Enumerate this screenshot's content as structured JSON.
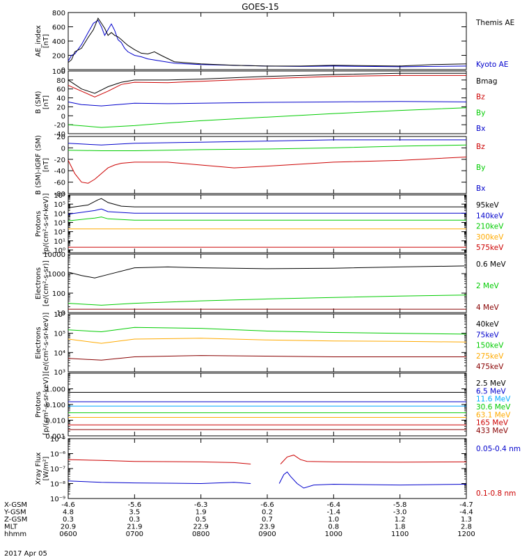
{
  "title": "GOES-15",
  "date_label": "2017 Apr 05",
  "footer": {
    "rows": [
      {
        "label": "X-GSM",
        "values": [
          "-4.6",
          "-5.6",
          "-6.3",
          "-6.6",
          "-6.4",
          "-5.8",
          "-4.7"
        ]
      },
      {
        "label": "Y-GSM",
        "values": [
          "4.8",
          "3.5",
          "1.9",
          "0.2",
          "-1.4",
          "-3.0",
          "-4.4"
        ]
      },
      {
        "label": "Z-GSM",
        "values": [
          "0.3",
          "0.3",
          "0.5",
          "0.7",
          "1.0",
          "1.2",
          "1.3"
        ]
      },
      {
        "label": "MLT",
        "values": [
          "20.9",
          "21.9",
          "22.9",
          "23.9",
          "0.8",
          "1.8",
          "2.8"
        ]
      },
      {
        "label": "hhmm",
        "values": [
          "0600",
          "0700",
          "0800",
          "0900",
          "1000",
          "1100",
          "1200"
        ]
      }
    ]
  },
  "colors": {
    "black": "#000000",
    "red": "#cc0000",
    "green": "#00cc00",
    "blue": "#0000cc",
    "orange": "#ffaa00",
    "ltblue": "#00aaff",
    "purple": "#8800aa",
    "brown": "#880000"
  },
  "chart_data": [
    {
      "type": "line",
      "ylabel": "AE_index\n[nT]",
      "scale": "linear",
      "ylim": [
        0,
        800
      ],
      "yticks": [
        0,
        200,
        400,
        600,
        800
      ],
      "ytick_labels": [
        "0",
        "200",
        "400",
        "600",
        "800"
      ],
      "series": [
        {
          "name": "Kyoto AE",
          "color": "blue",
          "x": [
            0,
            0.05,
            0.1,
            0.2,
            0.3,
            0.38,
            0.45,
            0.5,
            0.55,
            0.6,
            0.65,
            0.7,
            0.75,
            0.8,
            0.85,
            0.9,
            1,
            1.1,
            1.2,
            1.4,
            1.6,
            2,
            2.5,
            3,
            3.5,
            4,
            4.5,
            5,
            5.5,
            6
          ],
          "y": [
            120,
            200,
            220,
            350,
            520,
            650,
            690,
            600,
            480,
            560,
            640,
            550,
            420,
            380,
            300,
            250,
            200,
            180,
            150,
            120,
            90,
            70,
            60,
            50,
            45,
            50,
            45,
            40,
            45,
            50
          ]
        },
        {
          "name": "Themis AE",
          "color": "black",
          "x": [
            0,
            0.05,
            0.1,
            0.2,
            0.3,
            0.38,
            0.45,
            0.5,
            0.55,
            0.6,
            0.65,
            0.7,
            0.75,
            0.8,
            0.85,
            0.9,
            1,
            1.1,
            1.2,
            1.3,
            1.4,
            1.6,
            2,
            2.5,
            3,
            3.5,
            4,
            4.5,
            5,
            5.5,
            6
          ],
          "y": [
            100,
            140,
            250,
            300,
            450,
            560,
            720,
            650,
            580,
            480,
            520,
            480,
            460,
            420,
            380,
            340,
            280,
            230,
            220,
            250,
            200,
            110,
            80,
            60,
            50,
            50,
            60,
            55,
            50,
            70,
            80
          ]
        }
      ]
    },
    {
      "type": "line",
      "ylabel": "B (SM)\n[nT]",
      "scale": "linear",
      "ylim": [
        -40,
        100
      ],
      "yticks": [
        -40,
        -20,
        0,
        20,
        40,
        60,
        80,
        100
      ],
      "ytick_labels": [
        "-40",
        "-20",
        "0",
        "20",
        "40",
        "60",
        "80",
        "100"
      ],
      "series": [
        {
          "name": "Bx",
          "color": "blue",
          "x": [
            0,
            0.2,
            0.5,
            1,
            1.5,
            2,
            3,
            4,
            5,
            6
          ],
          "y": [
            31,
            25,
            22,
            28,
            27,
            28,
            30,
            31,
            32,
            31
          ]
        },
        {
          "name": "By",
          "color": "green",
          "x": [
            0,
            0.5,
            1,
            1.5,
            2,
            3,
            4,
            5,
            6
          ],
          "y": [
            -20,
            -26,
            -22,
            -16,
            -11,
            -3,
            5,
            12,
            18
          ]
        },
        {
          "name": "Bz",
          "color": "red",
          "x": [
            0,
            0.2,
            0.4,
            0.6,
            0.8,
            1,
            1.5,
            2,
            3,
            4,
            5,
            6
          ],
          "y": [
            68,
            55,
            42,
            55,
            70,
            75,
            74,
            77,
            83,
            88,
            90,
            90
          ]
        },
        {
          "name": "Bmag",
          "color": "black",
          "x": [
            0,
            0.2,
            0.4,
            0.6,
            0.8,
            1,
            1.5,
            2,
            3,
            4,
            5,
            6
          ],
          "y": [
            80,
            60,
            50,
            65,
            75,
            80,
            80,
            82,
            88,
            92,
            95,
            95
          ]
        }
      ]
    },
    {
      "type": "line",
      "ylabel": "B (SM)-IGRF (SM)\n[nT]",
      "scale": "linear",
      "ylim": [
        -80,
        20
      ],
      "yticks": [
        -80,
        -60,
        -40,
        -20,
        0,
        20
      ],
      "ytick_labels": [
        "-80",
        "-60",
        "-40",
        "-20",
        "0",
        "20"
      ],
      "series": [
        {
          "name": "Bx",
          "color": "blue",
          "x": [
            0,
            0.5,
            1,
            2,
            3,
            4,
            5,
            6
          ],
          "y": [
            8,
            5,
            8,
            10,
            12,
            14,
            14,
            14
          ]
        },
        {
          "name": "By",
          "color": "green",
          "x": [
            0,
            0.5,
            1,
            2,
            3,
            4,
            5,
            6
          ],
          "y": [
            -4,
            -5,
            -5,
            -3,
            -2,
            0,
            3,
            5
          ]
        },
        {
          "name": "Bz",
          "color": "red",
          "x": [
            0,
            0.1,
            0.2,
            0.3,
            0.4,
            0.5,
            0.6,
            0.7,
            0.8,
            1,
            1.5,
            2,
            2.5,
            3,
            4,
            5,
            6
          ],
          "y": [
            -22,
            -45,
            -60,
            -62,
            -55,
            -45,
            -35,
            -30,
            -27,
            -25,
            -25,
            -30,
            -35,
            -32,
            -25,
            -22,
            -16
          ]
        }
      ]
    },
    {
      "type": "line",
      "ylabel": "Protons\n[p/(cm²-s-sr-keV)]",
      "scale": "log",
      "ylim": [
        0.5,
        1000000
      ],
      "yticks": [
        1,
        10,
        100,
        1000,
        10000,
        100000,
        1000000
      ],
      "ytick_labels": [
        "10⁰",
        "10¹",
        "10²",
        "10³",
        "10⁴",
        "10⁵",
        "10⁶"
      ],
      "series": [
        {
          "name": "575keV",
          "color": "red",
          "x": [
            0,
            6
          ],
          "y": [
            2,
            2
          ]
        },
        {
          "name": "300keV",
          "color": "orange",
          "x": [
            0,
            6
          ],
          "y": [
            200,
            200
          ]
        },
        {
          "name": "210keV",
          "color": "green",
          "x": [
            0,
            0.4,
            0.5,
            0.6,
            1,
            6
          ],
          "y": [
            1500,
            3000,
            4000,
            2500,
            1800,
            1800
          ]
        },
        {
          "name": "140keV",
          "color": "blue",
          "x": [
            0,
            0.4,
            0.5,
            0.6,
            1,
            6
          ],
          "y": [
            8000,
            20000,
            30000,
            15000,
            10000,
            10000
          ]
        },
        {
          "name": "95keV",
          "color": "black",
          "x": [
            0,
            0.3,
            0.45,
            0.5,
            0.6,
            0.8,
            1,
            6
          ],
          "y": [
            40000,
            80000,
            300000,
            400000,
            150000,
            60000,
            50000,
            50000
          ]
        }
      ]
    },
    {
      "type": "line",
      "ylabel": "Electrons\n[e/(cm²-s-sr)]",
      "scale": "log",
      "ylim": [
        10,
        10000
      ],
      "yticks": [
        10,
        100,
        1000,
        10000
      ],
      "ytick_labels": [
        "10",
        "100",
        "1000",
        "10000"
      ],
      "series": [
        {
          "name": "4 MeV",
          "color": "brown",
          "x": [
            0,
            6
          ],
          "y": [
            15,
            15
          ]
        },
        {
          "name": "2 MeV",
          "color": "green",
          "x": [
            0,
            0.5,
            1,
            2,
            3,
            4,
            5,
            6
          ],
          "y": [
            30,
            24,
            30,
            40,
            50,
            60,
            70,
            80
          ]
        },
        {
          "name": "0.6 MeV",
          "color": "black",
          "x": [
            0,
            0.2,
            0.4,
            0.6,
            1,
            1.5,
            2,
            3,
            4,
            5,
            6
          ],
          "y": [
            1200,
            800,
            600,
            900,
            2000,
            2200,
            2000,
            1800,
            1900,
            2200,
            2500
          ]
        }
      ]
    },
    {
      "type": "line",
      "ylabel": "Electrons\n[e/(cm²-s-sr-keV)]",
      "scale": "log",
      "ylim": [
        1000,
        1000000
      ],
      "yticks": [
        1000,
        10000,
        100000,
        1000000
      ],
      "ytick_labels": [
        "10³",
        "10⁴",
        "10⁵",
        "10⁶"
      ],
      "series": [
        {
          "name": "475keV",
          "color": "brown",
          "x": [
            0,
            0.5,
            1,
            2,
            3,
            4,
            5,
            6
          ],
          "y": [
            5000,
            4000,
            6000,
            7000,
            6500,
            6000,
            6000,
            6000
          ]
        },
        {
          "name": "275keV",
          "color": "orange",
          "x": [
            0,
            0.5,
            1,
            2,
            3,
            4,
            5,
            6
          ],
          "y": [
            50000,
            30000,
            50000,
            55000,
            45000,
            40000,
            38000,
            35000
          ]
        },
        {
          "name": "150keV",
          "color": "green",
          "x": [
            0,
            0.5,
            1,
            2,
            3,
            4,
            5,
            6
          ],
          "y": [
            150000,
            120000,
            200000,
            180000,
            130000,
            110000,
            100000,
            90000
          ]
        },
        {
          "name": "75keV",
          "color": "blue",
          "x": [
            0,
            6
          ],
          "y": [
            1000000,
            1000000
          ]
        },
        {
          "name": "40keV",
          "color": "black",
          "x": [
            0,
            6
          ],
          "y": [
            1000000,
            1000000
          ]
        }
      ]
    },
    {
      "type": "line",
      "ylabel": "Protons\n[p/(cm²-s-sr-keV)]",
      "scale": "log",
      "ylim": [
        0.001,
        10
      ],
      "yticks": [
        0.001,
        0.01,
        0.1,
        1
      ],
      "ytick_labels": [
        "0.001",
        "0.010",
        "0.100",
        "1.000"
      ],
      "series": [
        {
          "name": "433 MeV",
          "color": "brown",
          "x": [
            0,
            6
          ],
          "y": [
            0.0025,
            0.0025
          ]
        },
        {
          "name": "165 MeV",
          "color": "red",
          "x": [
            0,
            6
          ],
          "y": [
            0.005,
            0.005
          ]
        },
        {
          "name": "63.1 MeV",
          "color": "orange",
          "x": [
            0,
            6
          ],
          "y": [
            0.015,
            0.015
          ]
        },
        {
          "name": "30.6 MeV",
          "color": "green",
          "x": [
            0,
            6
          ],
          "y": [
            0.03,
            0.03
          ]
        },
        {
          "name": "11.6 MeV",
          "color": "ltblue",
          "x": [
            0,
            6
          ],
          "y": [
            0.08,
            0.08
          ]
        },
        {
          "name": "6.5 MeV",
          "color": "blue",
          "x": [
            0,
            6
          ],
          "y": [
            0.15,
            0.15
          ]
        },
        {
          "name": "2.5 MeV",
          "color": "black",
          "x": [
            0,
            6
          ],
          "y": [
            0.6,
            0.6
          ]
        }
      ]
    },
    {
      "type": "line",
      "ylabel": "Xray Flux\n[W/m²]",
      "scale": "log",
      "ylim": [
        1e-09,
        1e-05
      ],
      "yticks": [
        1e-09,
        1e-08,
        1e-07,
        1e-06,
        1e-05
      ],
      "ytick_labels": [
        "10⁻⁹",
        "10⁻⁸",
        "10⁻⁷",
        "10⁻⁶",
        "10⁻⁵"
      ],
      "series": [
        {
          "name": "0.1-0.8 nm",
          "color": "red",
          "x": [
            0,
            0.5,
            1,
            2,
            2.5,
            2.75,
            null,
            3.2,
            3.3,
            3.4,
            3.5,
            3.6,
            4,
            5,
            6
          ],
          "y": [
            4e-07,
            3.5e-07,
            3e-07,
            2.8e-07,
            2.5e-07,
            2e-07,
            null,
            2e-07,
            6e-07,
            8e-07,
            4e-07,
            3e-07,
            2.8e-07,
            2.7e-07,
            2.8e-07
          ]
        },
        {
          "name": "0.05-0.4 nm",
          "color": "blue",
          "x": [
            0,
            0.5,
            1,
            2,
            2.5,
            2.75,
            null,
            3.18,
            3.25,
            3.3,
            3.35,
            3.45,
            3.55,
            3.7,
            4,
            5,
            6
          ],
          "y": [
            1.5e-08,
            1.2e-08,
            1.1e-08,
            1e-08,
            1.2e-08,
            1e-08,
            null,
            1e-08,
            4e-08,
            6e-08,
            3e-08,
            1e-08,
            5e-09,
            8e-09,
            9e-09,
            8e-09,
            9e-09
          ]
        }
      ]
    }
  ]
}
